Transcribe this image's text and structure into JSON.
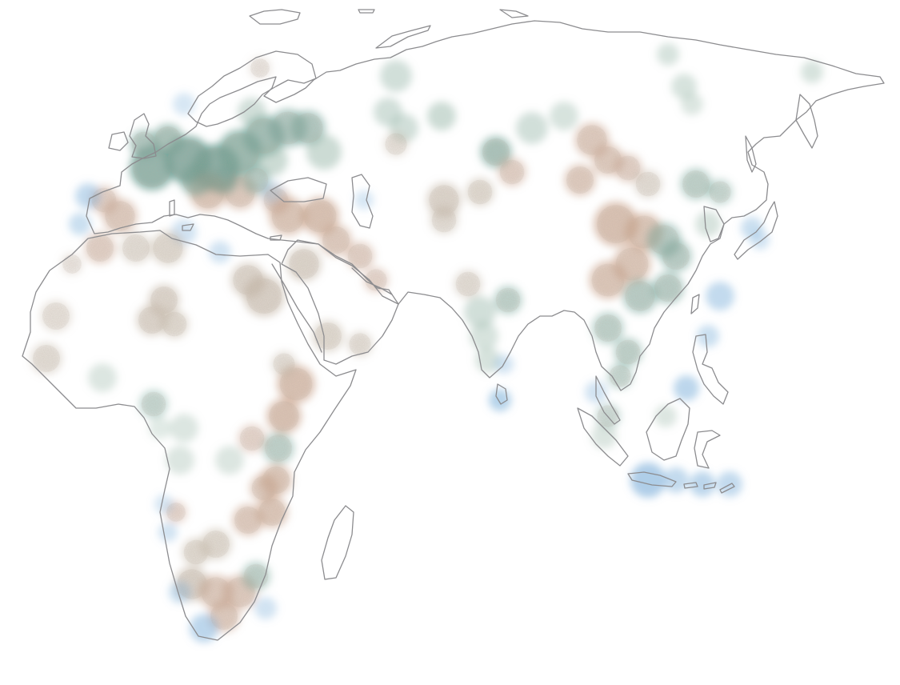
{
  "map": {
    "style": "relief-shaded blotches over country outlines",
    "background_color": "#ffffff",
    "coast_color": "#8c8c8f",
    "tone_colors": {
      "forest": "#6f9f93",
      "sage": "#9ab8aa",
      "desert": "#bfb1a0",
      "earth": "#c49c84",
      "water": "#7aaed9"
    }
  }
}
